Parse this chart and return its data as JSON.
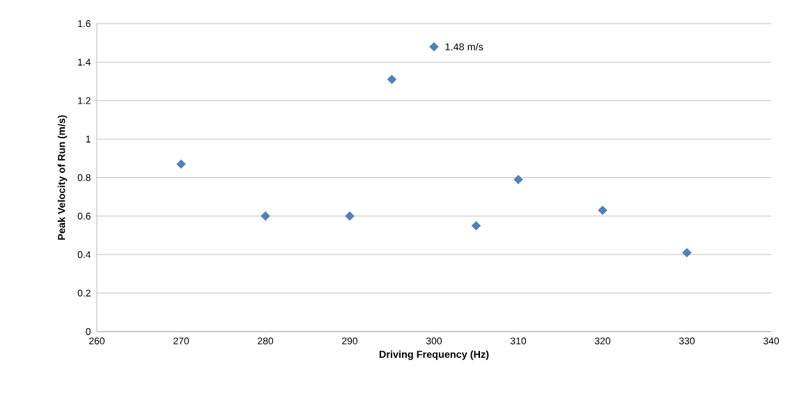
{
  "chart_data": {
    "type": "scatter",
    "xlabel": "Driving Frequency (Hz)",
    "ylabel": "Peak Velocity of Run (m/s)",
    "x": [
      270,
      280,
      290,
      295,
      300,
      305,
      310,
      320,
      330
    ],
    "values": [
      0.87,
      0.6,
      0.6,
      1.31,
      1.48,
      0.55,
      0.79,
      0.63,
      0.41
    ],
    "color": "#4f81bd",
    "marker": "diamond",
    "xlim": [
      260,
      340
    ],
    "xticks": [
      260,
      270,
      280,
      290,
      300,
      310,
      320,
      330,
      340
    ],
    "ylim": [
      0,
      1.6
    ],
    "yticks": [
      0,
      0.2,
      0.4,
      0.6,
      0.8,
      1,
      1.2,
      1.4,
      1.6
    ],
    "grid": "y",
    "annotations": [
      {
        "text": "1.48 m/s",
        "x": 300,
        "y": 1.48
      }
    ]
  }
}
